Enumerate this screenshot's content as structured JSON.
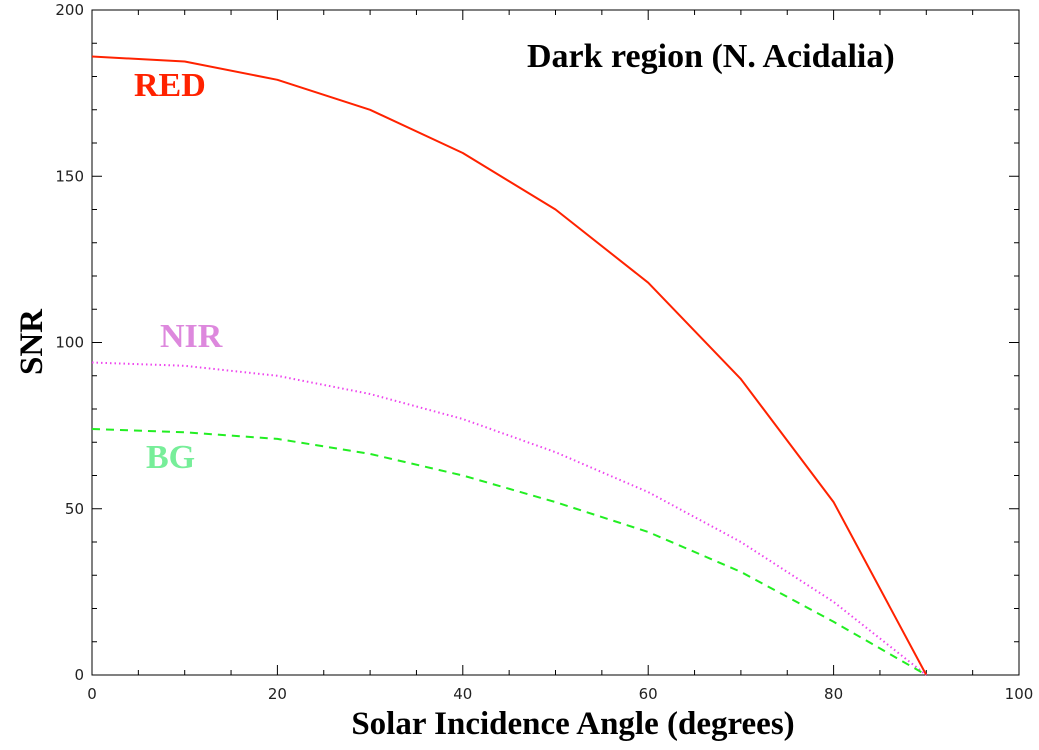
{
  "chart_data": {
    "type": "line",
    "title": "Dark region (N. Acidalia)",
    "xlabel": "Solar Incidence Angle (degrees)",
    "ylabel": "SNR",
    "xlim": [
      0,
      100
    ],
    "ylim": [
      0,
      200
    ],
    "x_ticks": [
      0,
      20,
      40,
      60,
      80,
      100
    ],
    "y_ticks": [
      0,
      50,
      100,
      150,
      200
    ],
    "grid": false,
    "series": [
      {
        "name": "RED",
        "color": "#ff2200",
        "style": "solid",
        "x": [
          0,
          10,
          20,
          30,
          40,
          50,
          60,
          70,
          80,
          90
        ],
        "y": [
          186,
          184.5,
          179,
          170,
          157,
          140,
          118,
          89,
          52,
          0
        ]
      },
      {
        "name": "NIR",
        "color": "#ee44ee",
        "style": "dotted",
        "x": [
          0,
          10,
          20,
          30,
          40,
          50,
          60,
          70,
          80,
          90
        ],
        "y": [
          94,
          93,
          90,
          84.5,
          77,
          67,
          55,
          40,
          22,
          0
        ]
      },
      {
        "name": "BG",
        "color": "#22ee22",
        "style": "dashed",
        "x": [
          0,
          10,
          20,
          30,
          40,
          50,
          60,
          70,
          80,
          90
        ],
        "y": [
          74,
          73,
          71,
          66.5,
          60,
          52,
          43,
          31,
          16,
          0
        ]
      }
    ],
    "series_label_colors": {
      "RED": "#ff2200",
      "NIR": "#dd88dd",
      "BG": "#77ee99"
    }
  }
}
